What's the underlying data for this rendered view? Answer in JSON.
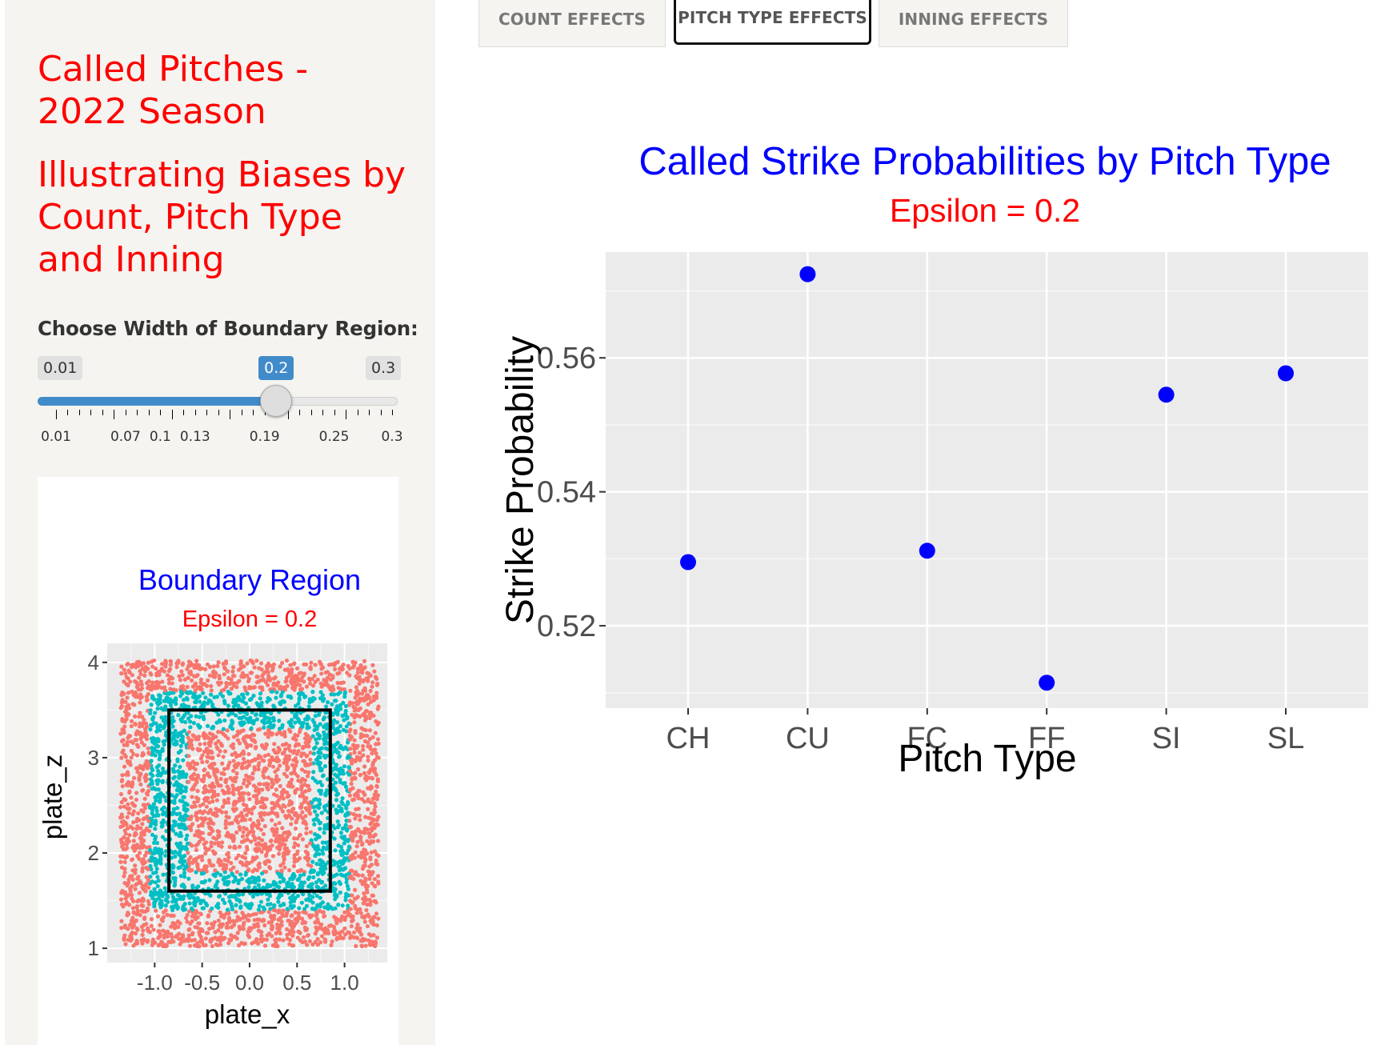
{
  "sidebar": {
    "title": "Called Pitches - 2022 Season",
    "title_lines": [
      "Called Pitches -",
      "2022 Season"
    ],
    "subtitle": "Illustrating Biases by Count, Pitch Type and Inning",
    "subtitle_lines": [
      "Illustrating Biases by",
      "Count, Pitch Type",
      "and Inning"
    ],
    "slider": {
      "label": "Choose Width of Boundary Region:",
      "min_label": "0.01",
      "max_label": "0.3",
      "value_label": "0.2",
      "min": 0.01,
      "max": 0.3,
      "value": 0.2,
      "tick_labels": [
        "0.01",
        "0.07",
        "0.1",
        "0.13",
        "0.19",
        "0.25",
        "0.3"
      ]
    }
  },
  "tabs": [
    {
      "label": "COUNT EFFECTS",
      "active": false
    },
    {
      "label": "PITCH TYPE EFFECTS",
      "active": true
    },
    {
      "label": "INNING EFFECTS",
      "active": false
    }
  ],
  "colors": {
    "title_red": "#ff0000",
    "slider_blue": "#428bca",
    "point_blue": "#0000ff",
    "boundary_teal": "#00bfc4",
    "outside_salmon": "#f8766d"
  },
  "chart_data": [
    {
      "type": "scatter",
      "title": "Boundary Region",
      "subtitle": "Epsilon = 0.2",
      "xlabel": "plate_x",
      "ylabel": "plate_z",
      "xlim": [
        -1.5,
        1.45
      ],
      "ylim": [
        0.85,
        4.2
      ],
      "x_ticks": [
        -1.0,
        -0.5,
        0.0,
        0.5,
        1.0
      ],
      "x_tick_labels": [
        "-1.0",
        "-0.5",
        "0.0",
        "0.5",
        "1.0"
      ],
      "y_ticks": [
        1,
        2,
        3,
        4
      ],
      "y_tick_labels": [
        "1",
        "2",
        "3",
        "4"
      ],
      "strike_zone": {
        "x": [
          -0.85,
          0.85
        ],
        "z": [
          1.6,
          3.5
        ]
      },
      "epsilon": 0.2,
      "series": [
        {
          "region": "outside",
          "color": "#f8766d"
        },
        {
          "region": "boundary",
          "color": "#00bfc4"
        }
      ],
      "grid": true
    },
    {
      "type": "scatter",
      "title": "Called Strike Probabilities by Pitch Type",
      "subtitle": "Epsilon = 0.2",
      "xlabel": "Pitch Type",
      "ylabel": "Strike Probability",
      "categories": [
        "CH",
        "CU",
        "FC",
        "FF",
        "SI",
        "SL"
      ],
      "values": [
        0.5295,
        0.5725,
        0.5312,
        0.5115,
        0.5545,
        0.5577
      ],
      "ylim": [
        0.5077,
        0.5758
      ],
      "y_ticks": [
        0.52,
        0.54,
        0.56
      ],
      "y_tick_labels": [
        "0.52",
        "0.54",
        "0.56"
      ],
      "point_color": "#0000ff",
      "grid": true
    }
  ]
}
